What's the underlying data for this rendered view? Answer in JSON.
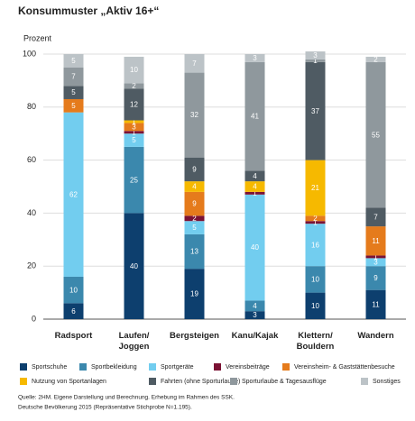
{
  "chart_data": {
    "type": "stacked_bar",
    "title": "Konsummuster „Aktiv 16+“",
    "y_label": "Prozent",
    "categories": [
      "Radsport",
      "Laufen/ Joggen",
      "Bergsteigen",
      "Kanu/Kajak",
      "Klettern/ Bouldern",
      "Wandern"
    ],
    "series": [
      {
        "name": "Sportschuhe",
        "color": "#0d3f6e",
        "values": [
          6,
          40,
          19,
          3,
          10,
          11
        ]
      },
      {
        "name": "Sportbekleidung",
        "color": "#3b88ad",
        "values": [
          10,
          25,
          13,
          4,
          10,
          9
        ]
      },
      {
        "name": "Sportgeräte",
        "color": "#72cdef",
        "values": [
          62,
          5,
          5,
          40,
          16,
          3
        ]
      },
      {
        "name": "Vereinsbeiträge",
        "color": "#7b1234",
        "values": [
          0,
          1,
          2,
          1,
          1,
          1
        ]
      },
      {
        "name": "Vereinsheim- & Gaststättenbesuche",
        "color": "#e57b1c",
        "values": [
          5,
          3,
          9,
          0,
          2,
          11
        ]
      },
      {
        "name": "Nutzung von Sportanlagen",
        "color": "#f6b900",
        "values": [
          0,
          1,
          4,
          4,
          21,
          0
        ]
      },
      {
        "name": "Fahrten (ohne Sporturlaube)",
        "color": "#4f5b63",
        "values": [
          5,
          12,
          9,
          4,
          37,
          7
        ]
      },
      {
        "name": "Sporturlaube & Tagesausflüge",
        "color": "#8f989d",
        "values": [
          7,
          2,
          32,
          41,
          1,
          55
        ]
      },
      {
        "name": "Sonstiges",
        "color": "#bcc3c7",
        "values": [
          5,
          10,
          7,
          3,
          3,
          2
        ]
      }
    ],
    "ylim": [
      0,
      100
    ],
    "yticks": [
      0,
      20,
      40,
      60,
      80,
      100
    ],
    "grid": true,
    "source": [
      "Quelle: 2HM. Eigene Darstellung und Berechnung. Erhebung im Rahmen des SSK.",
      "Deutsche Bevölkerung 2015 (Repräsentative Stichprobe N=1.195)."
    ]
  }
}
